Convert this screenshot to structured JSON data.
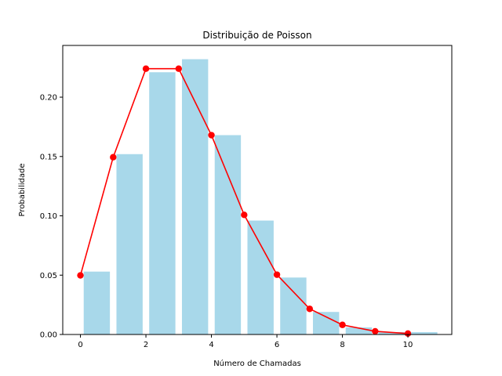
{
  "chart_data": {
    "type": "bar",
    "title": "Distribuição de Poisson",
    "xlabel": "Número de Chamadas",
    "ylabel": "Probabilidade",
    "xlim": [
      -0.54,
      11.34
    ],
    "ylim": [
      0,
      0.2436
    ],
    "xticks": [
      0,
      2,
      4,
      6,
      8,
      10
    ],
    "xtick_labels": [
      "0",
      "2",
      "4",
      "6",
      "8",
      "10"
    ],
    "yticks": [
      0,
      0.05,
      0.1,
      0.15,
      0.2
    ],
    "ytick_labels": [
      "0.00",
      "0.05",
      "0.10",
      "0.15",
      "0.20"
    ],
    "grid": false,
    "series": [
      {
        "type": "bar",
        "color": "#a8d8ea",
        "x": [
          0.5,
          1.5,
          2.5,
          3.5,
          4.5,
          5.5,
          6.5,
          7.5,
          8.5,
          9.5,
          10.5
        ],
        "width": 0.8,
        "values": [
          0.053,
          0.152,
          0.221,
          0.232,
          0.168,
          0.096,
          0.048,
          0.019,
          0.006,
          0.002,
          0.002
        ]
      },
      {
        "type": "line",
        "color": "#ff0000",
        "marker": "circle",
        "x": [
          0,
          1,
          2,
          3,
          4,
          5,
          6,
          7,
          8,
          9,
          10
        ],
        "values": [
          0.0498,
          0.1494,
          0.224,
          0.224,
          0.168,
          0.1008,
          0.0504,
          0.0216,
          0.0081,
          0.0027,
          0.0008
        ]
      }
    ]
  }
}
